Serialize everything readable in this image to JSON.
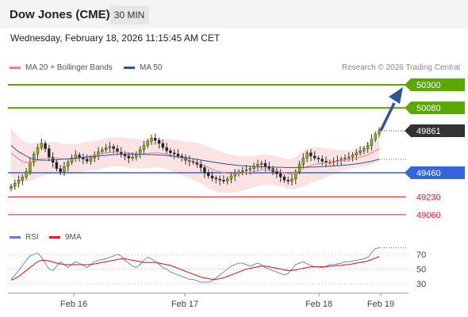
{
  "header": {
    "title": "Dow Jones (CME)",
    "timeframe": "30 MIN"
  },
  "datetime": "Wednesday, February 18, 2026 11:15:45 AM CET",
  "legend": {
    "ma20_label": "MA 20 + Bollinger Bands",
    "ma50_label": "MA 50",
    "rsi_label": "RSI",
    "rsi_ma_label": "9MA",
    "colors": {
      "ma20": "#f08080",
      "ma50": "#2f5597",
      "rsi": "#5b7fd6",
      "rsi_ma": "#e02020"
    }
  },
  "credit": "Research © 2026 Trading Central",
  "chart_data": [
    {
      "type": "candlestick",
      "title": "Dow Jones (CME)",
      "x_ticks": [
        "Feb 16",
        "Feb 17",
        "Feb 18",
        "Feb 19"
      ],
      "levels": [
        {
          "value": 50300,
          "label": "50300",
          "kind": "resistance",
          "color": "#5aa800"
        },
        {
          "value": 50080,
          "label": "50080",
          "kind": "resistance",
          "color": "#5aa800"
        },
        {
          "value": 49861,
          "label": "49861",
          "kind": "last_price",
          "color": "#333333"
        },
        {
          "value": 49460,
          "label": "49460",
          "kind": "pivot",
          "color": "#3366dd"
        },
        {
          "value": 49230,
          "label": "49230",
          "kind": "support",
          "color": "#e02020"
        },
        {
          "value": 49060,
          "label": "49060",
          "kind": "support",
          "color": "#e02020"
        }
      ],
      "price_series": [
        49330,
        49360,
        49390,
        49420,
        49470,
        49560,
        49640,
        49700,
        49740,
        49690,
        49610,
        49560,
        49500,
        49470,
        49520,
        49560,
        49600,
        49630,
        49610,
        49590,
        49570,
        49600,
        49630,
        49660,
        49680,
        49700,
        49710,
        49690,
        49660,
        49640,
        49620,
        49600,
        49610,
        49640,
        49680,
        49720,
        49760,
        49790,
        49770,
        49740,
        49700,
        49670,
        49650,
        49640,
        49620,
        49600,
        49580,
        49570,
        49560,
        49540,
        49510,
        49460,
        49430,
        49410,
        49400,
        49390,
        49380,
        49400,
        49430,
        49450,
        49470,
        49480,
        49490,
        49500,
        49520,
        49540,
        49550,
        49520,
        49500,
        49470,
        49450,
        49420,
        49390,
        49380,
        49400,
        49470,
        49540,
        49600,
        49650,
        49620,
        49600,
        49590,
        49570,
        49560,
        49560,
        49570,
        49580,
        49590,
        49600,
        49610,
        49630,
        49650,
        49670,
        49690,
        49720,
        49780,
        49830,
        49861
      ],
      "ma20_series": [
        49650,
        49620,
        49590,
        49570,
        49560,
        49560,
        49570,
        49580,
        49590,
        49595,
        49600,
        49600,
        49600,
        49595,
        49590,
        49590,
        49590,
        49595,
        49600,
        49610,
        49615,
        49620,
        49625,
        49630,
        49640,
        49650,
        49655,
        49660,
        49660,
        49660,
        49655,
        49650,
        49645,
        49640,
        49640,
        49640,
        49645,
        49650,
        49650,
        49650,
        49645,
        49640,
        49630,
        49620,
        49610,
        49600,
        49590,
        49580,
        49570,
        49560,
        49550,
        49530,
        49510,
        49495,
        49480,
        49470,
        49460,
        49455,
        49450,
        49450,
        49450,
        49455,
        49460,
        49465,
        49470,
        49480,
        49490,
        49490,
        49490,
        49485,
        49480,
        49470,
        49460,
        49450,
        49450,
        49460,
        49480,
        49500,
        49520,
        49530,
        49540,
        49545,
        49550,
        49555,
        49560,
        49565,
        49570,
        49575,
        49580,
        49585,
        49590,
        49600,
        49610,
        49620,
        49630,
        49650,
        49670,
        49690
      ],
      "ma50_series": [
        49720,
        49690,
        49660,
        49640,
        49620,
        49600,
        49590,
        49585,
        49580,
        49580,
        49580,
        49582,
        49585,
        49588,
        49590,
        49593,
        49596,
        49600,
        49603,
        49606,
        49610,
        49613,
        49616,
        49620,
        49623,
        49626,
        49630,
        49632,
        49634,
        49636,
        49637,
        49638,
        49638,
        49637,
        49636,
        49635,
        49634,
        49633,
        49632,
        49630,
        49628,
        49625,
        49622,
        49618,
        49614,
        49610,
        49605,
        49600,
        49594,
        49588,
        49582,
        49576,
        49570,
        49564,
        49558,
        49552,
        49547,
        49542,
        49538,
        49534,
        49530,
        49527,
        49524,
        49522,
        49520,
        49518,
        49517,
        49516,
        49515,
        49514,
        49513,
        49512,
        49511,
        49510,
        49510,
        49510,
        49511,
        49512,
        49513,
        49514,
        49515,
        49517,
        49519,
        49521,
        49523,
        49525,
        49527,
        49530,
        49533,
        49536,
        49540,
        49545,
        49550,
        49556,
        49562,
        49570,
        49580,
        49590
      ],
      "bb_width": [
        230,
        220,
        210,
        200,
        190,
        180,
        175,
        170,
        165,
        160,
        158,
        155,
        150,
        148,
        146,
        145,
        144,
        143,
        142,
        141,
        140,
        140,
        140,
        140,
        140,
        140,
        140,
        140,
        140,
        140,
        140,
        140,
        140,
        140,
        140,
        140,
        140,
        140,
        140,
        140,
        140,
        145,
        150,
        155,
        160,
        165,
        170,
        175,
        180,
        185,
        190,
        195,
        200,
        200,
        200,
        195,
        190,
        185,
        180,
        175,
        170,
        165,
        160,
        155,
        150,
        148,
        146,
        144,
        142,
        140,
        140,
        140,
        140,
        140,
        145,
        150,
        160,
        170,
        175,
        170,
        165,
        160,
        150,
        140,
        130,
        120,
        110,
        100,
        95,
        90,
        90,
        92,
        95,
        100,
        105,
        110,
        115,
        120
      ]
    },
    {
      "type": "line",
      "title": "RSI",
      "ylim": [
        20,
        80
      ],
      "y_ticks": [
        70,
        50,
        30
      ],
      "x_ticks": [
        "Feb 16",
        "Feb 17",
        "Feb 18",
        "Feb 19"
      ],
      "series": [
        {
          "name": "RSI",
          "values": [
            36,
            42,
            48,
            55,
            62,
            68,
            70,
            72,
            66,
            58,
            50,
            48,
            54,
            60,
            56,
            52,
            56,
            60,
            58,
            55,
            52,
            56,
            60,
            62,
            63,
            64,
            66,
            68,
            70,
            68,
            62,
            58,
            54,
            52,
            56,
            62,
            66,
            64,
            60,
            56,
            52,
            50,
            46,
            44,
            42,
            40,
            38,
            36,
            36,
            34,
            32,
            32,
            32,
            34,
            38,
            42,
            46,
            50,
            54,
            56,
            58,
            58,
            56,
            54,
            56,
            58,
            56,
            52,
            50,
            48,
            46,
            44,
            42,
            44,
            50,
            56,
            58,
            60,
            57,
            55,
            53,
            53,
            52,
            54,
            56,
            56,
            57,
            58,
            60,
            60,
            61,
            62,
            63,
            64,
            66,
            72,
            78,
            79
          ]
        },
        {
          "name": "9MA",
          "values": [
            35,
            37,
            40,
            44,
            48,
            52,
            56,
            60,
            62,
            62,
            61,
            60,
            58,
            57,
            56,
            56,
            56,
            56,
            56,
            56,
            56,
            56,
            57,
            58,
            59,
            60,
            61,
            62,
            63,
            64,
            64,
            63,
            62,
            61,
            60,
            59,
            59,
            59,
            59,
            58,
            57,
            56,
            55,
            53,
            51,
            49,
            47,
            45,
            43,
            41,
            39,
            38,
            37,
            36,
            36,
            37,
            38,
            40,
            42,
            44,
            46,
            48,
            50,
            51,
            52,
            53,
            54,
            54,
            53,
            52,
            51,
            50,
            49,
            48,
            48,
            49,
            50,
            51,
            52,
            53,
            53,
            53,
            53,
            53,
            54,
            54,
            55,
            55,
            56,
            56,
            57,
            58,
            59,
            60,
            61,
            63,
            65,
            67
          ]
        }
      ]
    }
  ]
}
